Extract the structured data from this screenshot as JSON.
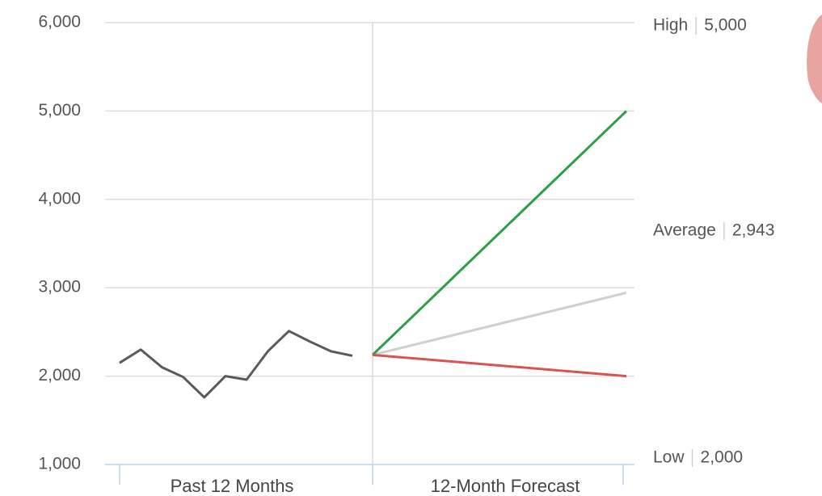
{
  "chart_data": {
    "type": "line",
    "ylim": [
      1000,
      6000
    ],
    "yticks": [
      {
        "value": 1000,
        "label": "1,000"
      },
      {
        "value": 2000,
        "label": "2,000"
      },
      {
        "value": 3000,
        "label": "3,000"
      },
      {
        "value": 4000,
        "label": "4,000"
      },
      {
        "value": 5000,
        "label": "5,000"
      },
      {
        "value": 6000,
        "label": "6,000"
      }
    ],
    "grid": true,
    "sections": [
      "Past 12 Months",
      "12-Month Forecast"
    ],
    "history": {
      "color": "#5a5a5a",
      "values": [
        2150,
        2300,
        2100,
        1990,
        1760,
        2000,
        1960,
        2280,
        2510,
        2390,
        2280,
        2230
      ]
    },
    "series": [
      {
        "name": "High",
        "color": "#2e9e46",
        "values": [
          2240,
          5000
        ],
        "value_labels": [
          null,
          "5,000"
        ]
      },
      {
        "name": "Average",
        "color": "#cfcfcf",
        "values": [
          2240,
          2943
        ],
        "value_labels": [
          null,
          "2,943"
        ]
      },
      {
        "name": "Low",
        "color": "#d9534f",
        "values": [
          2240,
          2000
        ],
        "value_labels": [
          null,
          "2,000"
        ]
      }
    ]
  }
}
